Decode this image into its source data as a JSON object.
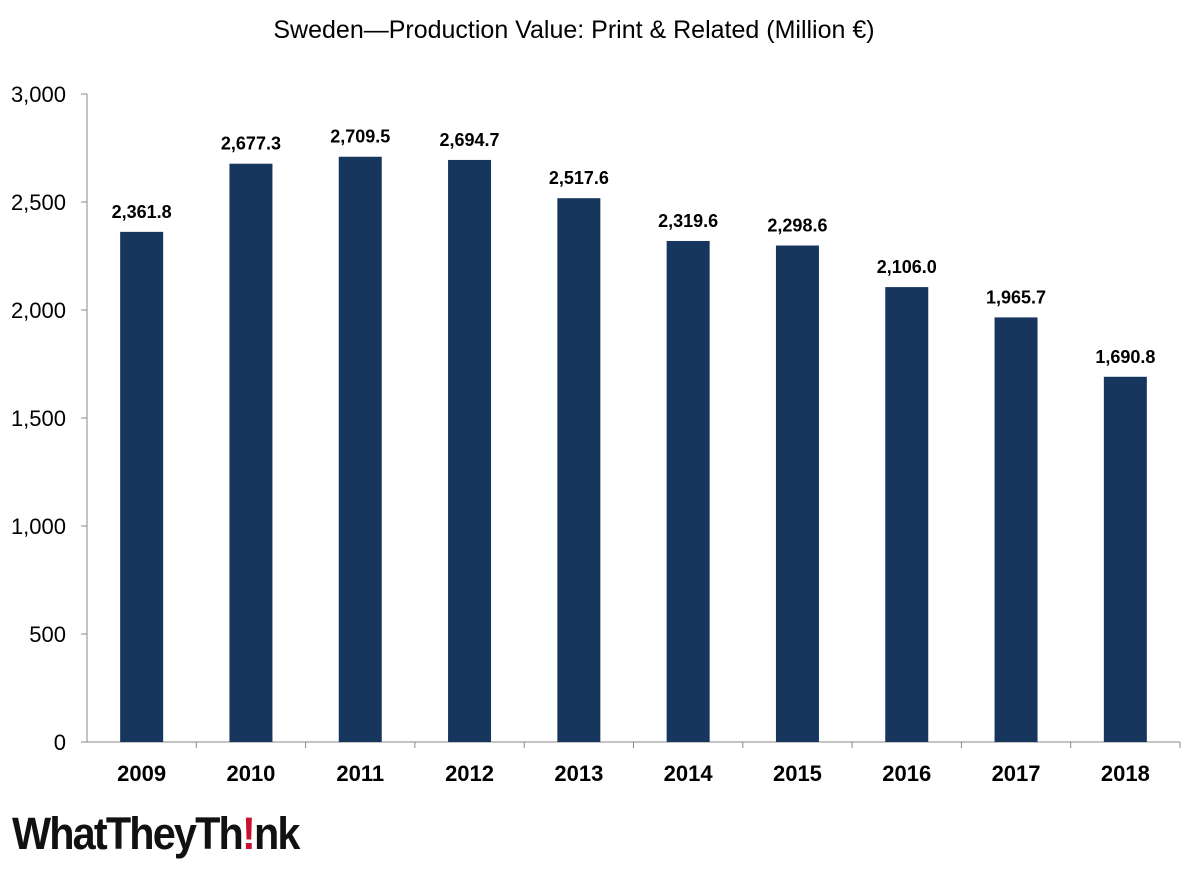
{
  "chart_data": {
    "type": "bar",
    "title": "Sweden—Production Value: Print & Related (Million €)",
    "categories": [
      "2009",
      "2010",
      "2011",
      "2012",
      "2013",
      "2014",
      "2015",
      "2016",
      "2017",
      "2018"
    ],
    "values": [
      2361.8,
      2677.3,
      2709.5,
      2694.7,
      2517.6,
      2319.6,
      2298.6,
      2106.0,
      1965.7,
      1690.8
    ],
    "value_labels": [
      "2,361.8",
      "2,677.3",
      "2,709.5",
      "2,694.7",
      "2,517.6",
      "2,319.6",
      "2,298.6",
      "2,106.0",
      "1,965.7",
      "1,690.8"
    ],
    "ylim": [
      0,
      3000
    ],
    "yticks": [
      0,
      500,
      1000,
      1500,
      2000,
      2500,
      3000
    ],
    "ytick_labels": [
      "0",
      "500",
      "1,000",
      "1,500",
      "2,000",
      "2,500",
      "3,000"
    ],
    "xlabel": "",
    "ylabel": "",
    "grid": false,
    "bar_color": "#17365d"
  },
  "branding": {
    "logo_prefix": "WhatTheyTh",
    "logo_mark": "!",
    "logo_suffix": "nk",
    "mark_color": "#c8102e"
  }
}
